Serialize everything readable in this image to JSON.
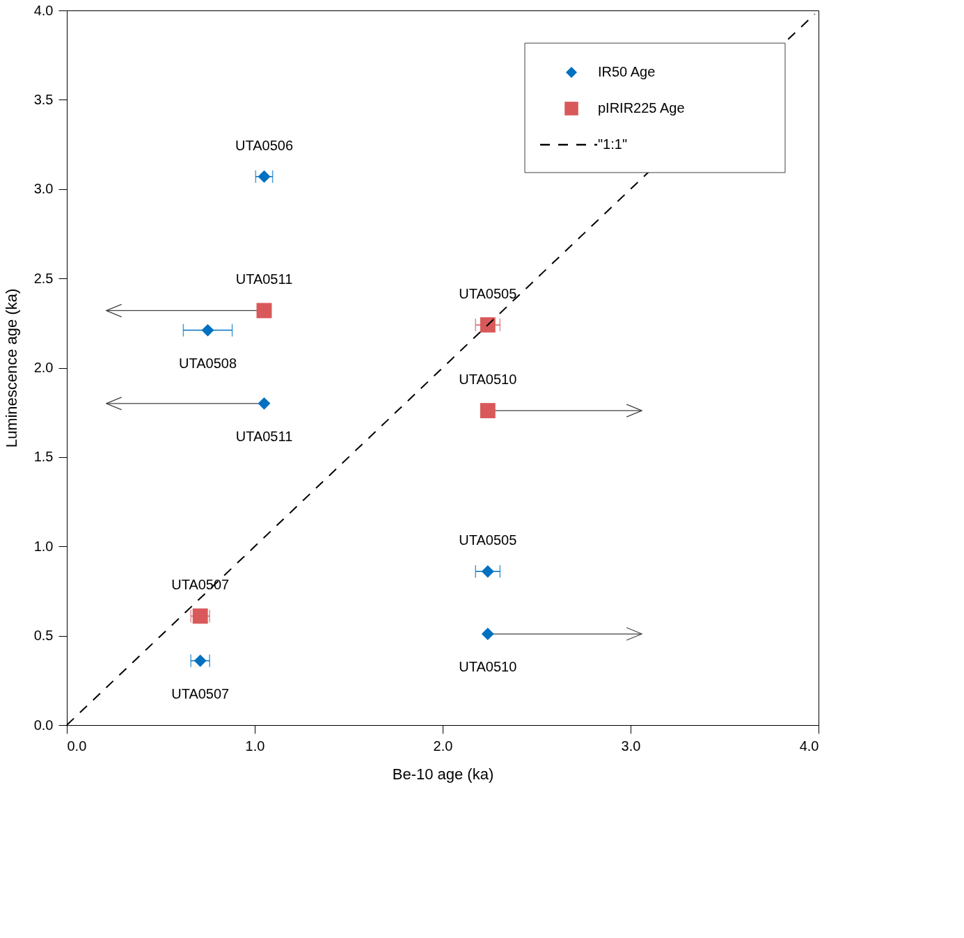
{
  "chart_data": {
    "type": "scatter",
    "xlabel": "Be-10 age (ka)",
    "ylabel": "Luminescence age (ka)",
    "xlim": [
      0,
      4
    ],
    "ylim": [
      0,
      4
    ],
    "xticks": [
      {
        "value": 0,
        "label": "0.0"
      },
      {
        "value": 1,
        "label": "1.0"
      },
      {
        "value": 2,
        "label": "2.0"
      },
      {
        "value": 3,
        "label": "3.0"
      },
      {
        "value": 4,
        "label": "4.0"
      }
    ],
    "yticks": [
      {
        "value": 0,
        "label": "0.0"
      },
      0.5,
      {
        "value": 1,
        "label": "1.0"
      },
      1.5,
      {
        "value": 2,
        "label": "2.0"
      },
      2.5,
      {
        "value": 3,
        "label": "3.0"
      },
      3.5,
      {
        "value": 4,
        "label": "4.0"
      }
    ],
    "legend": "top right",
    "series": [
      {
        "name": "IR50 Age",
        "marker": "diamond",
        "color": "#0070c0",
        "x": [
          1.05,
          0.75,
          1.05,
          2.24,
          2.24,
          0.71
        ],
        "values": [
          3.07,
          2.21,
          1.8,
          0.86,
          0.51,
          0.36
        ],
        "xerrors": [
          0.045,
          0.13,
          [
            0.21,
            1.05
          ],
          0.065,
          [
            2.24,
            3.06
          ],
          0.05
        ]
      },
      {
        "name": "pIRIR225 Age",
        "marker": "square",
        "color": "#d9595a",
        "x": [
          1.05,
          2.24,
          2.24,
          0.71
        ],
        "values": [
          2.32,
          2.24,
          1.76,
          0.61
        ],
        "xerrors": [
          [
            0.21,
            1.05
          ],
          0.065,
          [
            2.24,
            3.06
          ],
          0.05
        ]
      },
      {
        "name": "\"1:1\"",
        "type": "line",
        "line_style": "dashed",
        "color": "#000000",
        "x": [
          0,
          3.98
        ],
        "values": [
          0,
          3.98
        ]
      }
    ],
    "annotations": [
      {
        "text": "UTA0506",
        "x": 1.05,
        "y": 3.07
      },
      {
        "text": "UTA0511",
        "x": 1.05,
        "y": 2.32
      },
      {
        "text": "UTA0508",
        "x": 0.75,
        "y": 2.21
      },
      {
        "text": "UTA0511",
        "x": 1.05,
        "y": 1.8
      },
      {
        "text": "UTA0505",
        "x": 2.24,
        "y": 2.24
      },
      {
        "text": "UTA0510",
        "x": 2.24,
        "y": 1.76
      },
      {
        "text": "UTA0505",
        "x": 2.24,
        "y": 0.86
      },
      {
        "text": "UTA0510",
        "x": 2.24,
        "y": 0.51
      },
      {
        "text": "UTA0507",
        "x": 0.71,
        "y": 0.61
      },
      {
        "text": "UTA0507",
        "x": 0.71,
        "y": 0.36
      }
    ]
  }
}
